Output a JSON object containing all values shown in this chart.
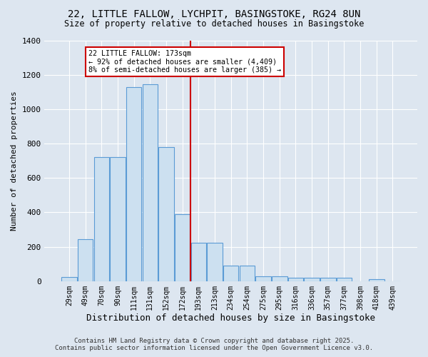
{
  "title1": "22, LITTLE FALLOW, LYCHPIT, BASINGSTOKE, RG24 8UN",
  "title2": "Size of property relative to detached houses in Basingstoke",
  "xlabel": "Distribution of detached houses by size in Basingstoke",
  "ylabel": "Number of detached properties",
  "bar_labels": [
    "29sqm",
    "49sqm",
    "70sqm",
    "90sqm",
    "111sqm",
    "131sqm",
    "152sqm",
    "172sqm",
    "193sqm",
    "213sqm",
    "234sqm",
    "254sqm",
    "275sqm",
    "295sqm",
    "316sqm",
    "336sqm",
    "357sqm",
    "377sqm",
    "398sqm",
    "418sqm",
    "439sqm"
  ],
  "bar_values": [
    25,
    245,
    720,
    720,
    1130,
    1145,
    780,
    390,
    225,
    225,
    90,
    90,
    28,
    28,
    22,
    22,
    18,
    18,
    0,
    10,
    0
  ],
  "bar_color": "#cce0f0",
  "bar_edge_color": "#5b9bd5",
  "red_line_x": 7.5,
  "annotation_title": "22 LITTLE FALLOW: 173sqm",
  "annotation_line1": "← 92% of detached houses are smaller (4,409)",
  "annotation_line2": "8% of semi-detached houses are larger (385) →",
  "annotation_box_color": "#ffffff",
  "annotation_box_edge": "#cc0000",
  "red_line_color": "#cc0000",
  "background_color": "#dde6f0",
  "ylim": [
    0,
    1400
  ],
  "yticks": [
    0,
    200,
    400,
    600,
    800,
    1000,
    1200,
    1400
  ],
  "footer1": "Contains HM Land Registry data © Crown copyright and database right 2025.",
  "footer2": "Contains public sector information licensed under the Open Government Licence v3.0."
}
